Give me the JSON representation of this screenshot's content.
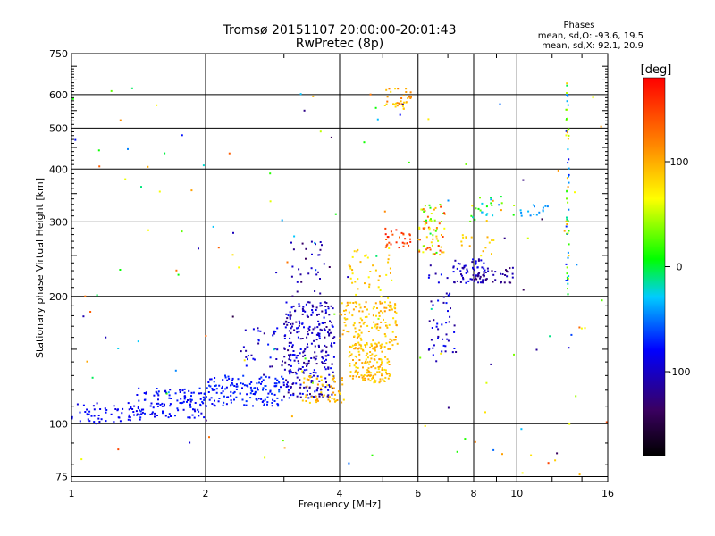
{
  "chart_data": {
    "type": "scatter",
    "title": "Tromsø 20151107 20:00:00-20:01:43",
    "subtitle": "RwPretec (8p)",
    "xlabel": "Frequency [MHz]",
    "ylabel": "Stationary phase Virtual Height [km]",
    "xscale": "log",
    "yscale": "log",
    "xlim": [
      1,
      16
    ],
    "ylim": [
      73,
      750
    ],
    "x_ticks": [
      1,
      2,
      4,
      6,
      8,
      10,
      16
    ],
    "y_ticks": [
      75,
      100,
      200,
      300,
      400,
      500,
      600,
      750
    ],
    "phases_note": {
      "title": "Phases",
      "line_o": "mean, sd,O: -93.6, 19.5",
      "line_x": "mean, sd,X: 92.1, 20.9"
    },
    "colorbar": {
      "label": "[deg]",
      "min": -180,
      "max": 180,
      "ticks": [
        100,
        0,
        -100
      ]
    },
    "clusters": [
      {
        "x": [
          1.0,
          1.45
        ],
        "y": [
          100,
          112
        ],
        "phase": [
          -110,
          -95
        ],
        "n": 60
      },
      {
        "x": [
          1.4,
          2.0
        ],
        "y": [
          103,
          122
        ],
        "phase": [
          -110,
          -85
        ],
        "n": 120
      },
      {
        "x": [
          2.0,
          3.0
        ],
        "y": [
          110,
          130
        ],
        "phase": [
          -105,
          -80
        ],
        "n": 150
      },
      {
        "x": [
          2.4,
          3.3
        ],
        "y": [
          128,
          170
        ],
        "phase": [
          -130,
          -90
        ],
        "n": 50
      },
      {
        "x": [
          3.0,
          3.9
        ],
        "y": [
          115,
          195
        ],
        "phase": [
          -135,
          -95
        ],
        "n": 300
      },
      {
        "x": [
          3.1,
          3.8
        ],
        "y": [
          200,
          270
        ],
        "phase": [
          -140,
          -110
        ],
        "n": 30
      },
      {
        "x": [
          3.3,
          4.1
        ],
        "y": [
          112,
          130
        ],
        "phase": [
          80,
          115
        ],
        "n": 60
      },
      {
        "x": [
          4.0,
          5.4
        ],
        "y": [
          150,
          195
        ],
        "phase": [
          80,
          115
        ],
        "n": 140
      },
      {
        "x": [
          4.2,
          5.2
        ],
        "y": [
          125,
          155
        ],
        "phase": [
          80,
          115
        ],
        "n": 160
      },
      {
        "x": [
          4.2,
          5.3
        ],
        "y": [
          195,
          260
        ],
        "phase": [
          60,
          110
        ],
        "n": 40
      },
      {
        "x": [
          5.0,
          5.8
        ],
        "y": [
          260,
          290
        ],
        "phase": [
          130,
          170
        ],
        "n": 30
      },
      {
        "x": [
          5.0,
          5.8
        ],
        "y": [
          555,
          620
        ],
        "phase": [
          80,
          130
        ],
        "n": 35
      },
      {
        "x": [
          6.0,
          6.9
        ],
        "y": [
          250,
          330
        ],
        "phase": [
          0,
          160
        ],
        "n": 70
      },
      {
        "x": [
          6.3,
          7.3
        ],
        "y": [
          140,
          240
        ],
        "phase": [
          -130,
          -90
        ],
        "n": 50
      },
      {
        "x": [
          7.2,
          8.5
        ],
        "y": [
          215,
          245
        ],
        "phase": [
          -130,
          -100
        ],
        "n": 60
      },
      {
        "x": [
          8.0,
          9.8
        ],
        "y": [
          215,
          235
        ],
        "phase": [
          -140,
          -115
        ],
        "n": 40
      },
      {
        "x": [
          7.5,
          9.0
        ],
        "y": [
          250,
          280
        ],
        "phase": [
          80,
          110
        ],
        "n": 15
      },
      {
        "x": [
          7.8,
          9.3
        ],
        "y": [
          300,
          345
        ],
        "phase": [
          -60,
          110
        ],
        "n": 25
      },
      {
        "x": [
          10.2,
          12.0
        ],
        "y": [
          310,
          330
        ],
        "phase": [
          -60,
          -30
        ],
        "n": 15
      },
      {
        "x": [
          12.9,
          13.1
        ],
        "y": [
          200,
          650
        ],
        "phase": [
          -110,
          120
        ],
        "n": 60
      },
      {
        "x": [
          1.0,
          16.0
        ],
        "y": [
          75,
          650
        ],
        "phase": [
          -150,
          150
        ],
        "n": 140
      }
    ]
  }
}
